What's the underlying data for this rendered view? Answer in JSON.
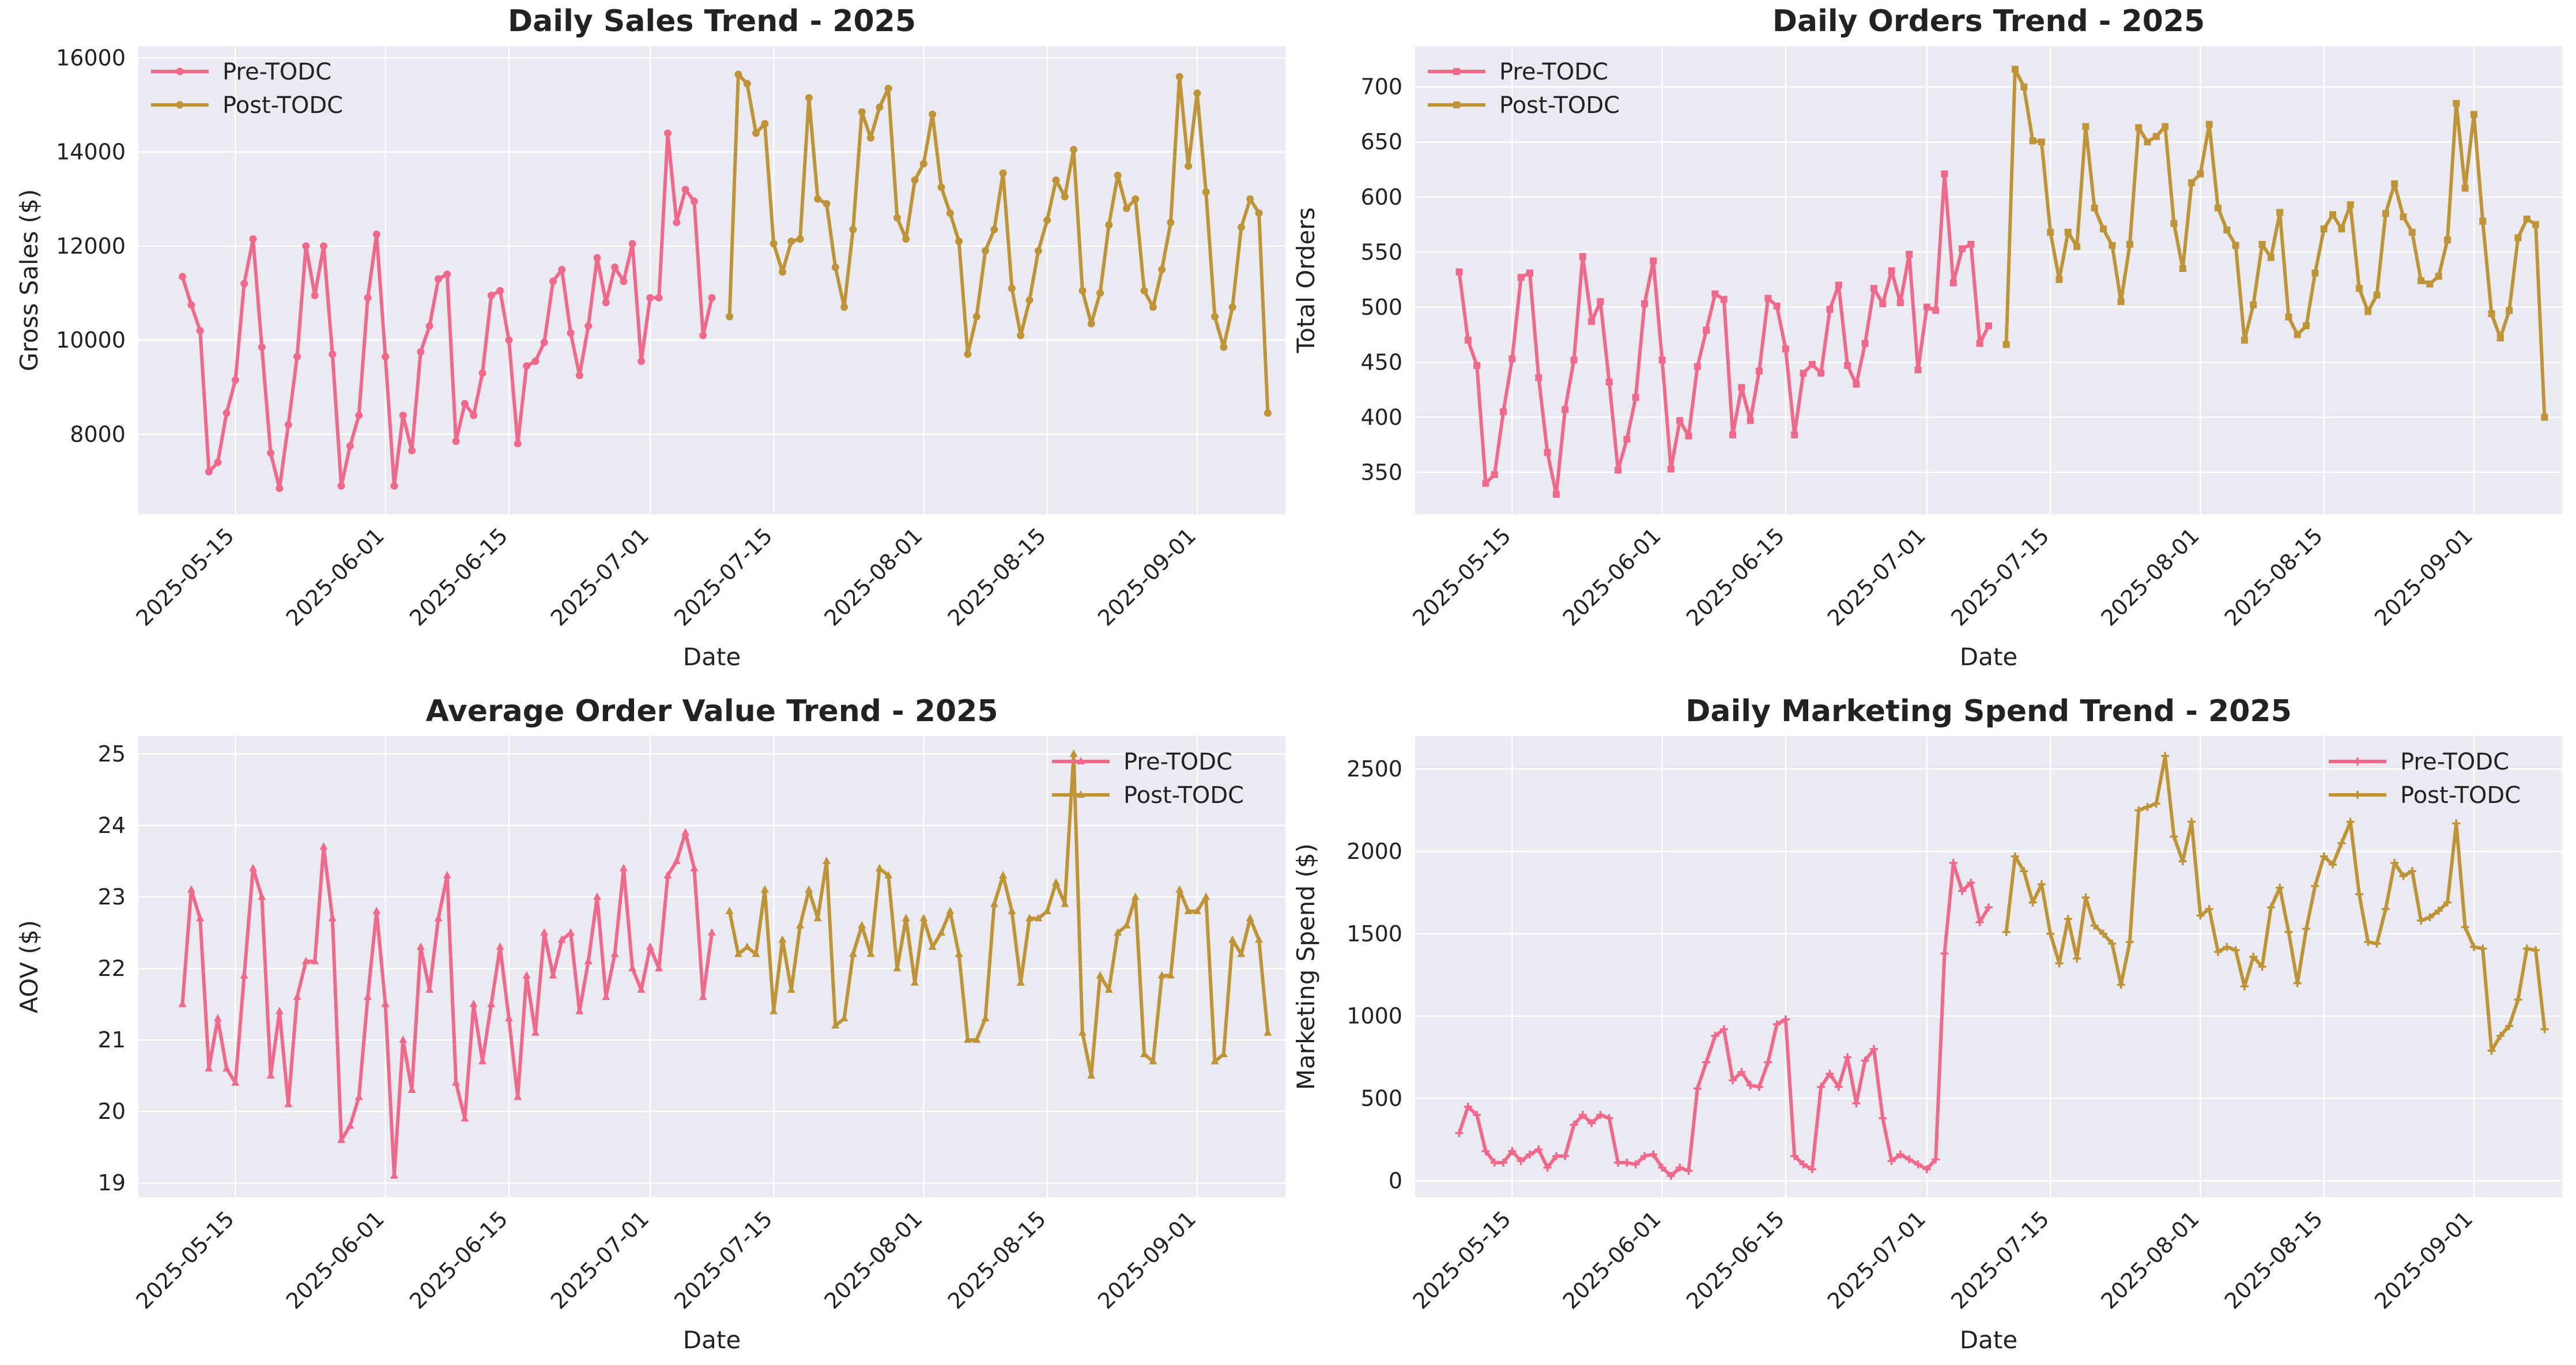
{
  "colors": {
    "pre": "#f0698a",
    "post": "#be9436",
    "plot_bg": "#eaeaf2",
    "grid": "#ffffff"
  },
  "chart_data": [
    {
      "type": "line",
      "title": "Daily Sales Trend - 2025",
      "xlabel": "Date",
      "ylabel": "Gross Sales ($)",
      "xlim": [
        "2025-05-04",
        "2025-09-11"
      ],
      "ylim": [
        6300,
        16250
      ],
      "yticks": [
        8000,
        10000,
        12000,
        14000,
        16000
      ],
      "xticks": [
        "2025-05-15",
        "2025-06-01",
        "2025-06-15",
        "2025-07-01",
        "2025-07-15",
        "2025-08-01",
        "2025-08-15",
        "2025-09-01"
      ],
      "grid": true,
      "legend": "upper-left",
      "marker": "circle",
      "series": [
        {
          "name": "Pre-TODC",
          "start": "2025-05-09",
          "values": [
            11350,
            10750,
            10200,
            7200,
            7400,
            8450,
            9150,
            11200,
            12150,
            9850,
            7600,
            6850,
            8200,
            9650,
            12000,
            10950,
            12000,
            9700,
            6900,
            7750,
            8400,
            10900,
            12250,
            9650,
            6900,
            8400,
            7650,
            9750,
            10300,
            11300,
            11400,
            7850,
            8650,
            8400,
            9300,
            10950,
            11050,
            10000,
            7800,
            9450,
            9550,
            9950,
            11250,
            11500,
            10150,
            9250,
            10300,
            11750,
            10800,
            11550,
            11250,
            12050,
            9550,
            10900,
            10900,
            14400,
            12500,
            13200,
            12950,
            10100,
            10900
          ]
        },
        {
          "name": "Post-TODC",
          "start": "2025-07-10",
          "values": [
            10500,
            15650,
            15450,
            14400,
            14600,
            12050,
            11450,
            12100,
            12150,
            15150,
            13000,
            12900,
            11550,
            10700,
            12350,
            14850,
            14300,
            14950,
            15350,
            12600,
            12150,
            13400,
            13750,
            14800,
            13250,
            12700,
            12100,
            9700,
            10500,
            11900,
            12350,
            13550,
            11100,
            10100,
            10850,
            11900,
            12550,
            13400,
            13050,
            14050,
            11050,
            10350,
            11000,
            12450,
            13500,
            12800,
            13000,
            11050,
            10700,
            11500,
            12500,
            15600,
            13700,
            15250,
            13150,
            10500,
            9850,
            10700,
            12400,
            13000,
            12700,
            8450
          ]
        }
      ]
    },
    {
      "type": "line",
      "title": "Daily Orders Trend - 2025",
      "xlabel": "Date",
      "ylabel": "Total Orders",
      "xlim": [
        "2025-05-04",
        "2025-09-11"
      ],
      "ylim": [
        312,
        737
      ],
      "yticks": [
        350,
        400,
        450,
        500,
        550,
        600,
        650,
        700
      ],
      "xticks": [
        "2025-05-15",
        "2025-06-01",
        "2025-06-15",
        "2025-07-01",
        "2025-07-15",
        "2025-08-01",
        "2025-08-15",
        "2025-09-01"
      ],
      "grid": true,
      "legend": "upper-left",
      "marker": "square",
      "series": [
        {
          "name": "Pre-TODC",
          "start": "2025-05-09",
          "values": [
            532,
            470,
            447,
            340,
            348,
            405,
            453,
            527,
            531,
            436,
            368,
            330,
            407,
            452,
            546,
            487,
            505,
            432,
            352,
            380,
            418,
            503,
            542,
            452,
            353,
            397,
            383,
            446,
            479,
            512,
            507,
            384,
            427,
            397,
            442,
            508,
            501,
            462,
            384,
            440,
            448,
            440,
            498,
            520,
            447,
            430,
            467,
            517,
            503,
            533,
            504,
            548,
            443,
            500,
            497,
            621,
            522,
            553,
            557,
            467,
            483
          ]
        },
        {
          "name": "Post-TODC",
          "start": "2025-07-10",
          "values": [
            466,
            716,
            700,
            651,
            650,
            568,
            525,
            568,
            555,
            664,
            590,
            571,
            556,
            505,
            557,
            663,
            650,
            655,
            664,
            576,
            535,
            613,
            621,
            666,
            590,
            570,
            556,
            470,
            502,
            557,
            545,
            586,
            491,
            475,
            483,
            531,
            571,
            584,
            571,
            593,
            517,
            496,
            511,
            585,
            612,
            582,
            568,
            524,
            521,
            528,
            561,
            685,
            608,
            675,
            578,
            494,
            472,
            497,
            563,
            580,
            575,
            400
          ]
        }
      ]
    },
    {
      "type": "line",
      "title": "Average Order Value Trend - 2025",
      "xlabel": "Date",
      "ylabel": "AOV ($)",
      "xlim": [
        "2025-05-04",
        "2025-09-11"
      ],
      "ylim": [
        18.8,
        25.25
      ],
      "yticks": [
        19,
        20,
        21,
        22,
        23,
        24,
        25
      ],
      "xticks": [
        "2025-05-15",
        "2025-06-01",
        "2025-06-15",
        "2025-07-01",
        "2025-07-15",
        "2025-08-01",
        "2025-08-15",
        "2025-09-01"
      ],
      "grid": true,
      "legend": "upper-right",
      "marker": "triangle",
      "series": [
        {
          "name": "Pre-TODC",
          "start": "2025-05-09",
          "values": [
            21.5,
            23.1,
            22.7,
            20.6,
            21.3,
            20.6,
            20.4,
            21.9,
            23.4,
            23.0,
            20.5,
            21.4,
            20.1,
            21.6,
            22.1,
            22.1,
            23.7,
            22.7,
            19.6,
            19.8,
            20.2,
            21.6,
            22.8,
            21.5,
            19.1,
            21.0,
            20.3,
            22.3,
            21.7,
            22.7,
            23.3,
            20.4,
            19.9,
            21.5,
            20.7,
            21.5,
            22.3,
            21.3,
            20.2,
            21.9,
            21.1,
            22.5,
            21.9,
            22.4,
            22.5,
            21.4,
            22.1,
            23.0,
            21.6,
            22.2,
            23.4,
            22.0,
            21.7,
            22.3,
            22.0,
            23.3,
            23.5,
            23.9,
            23.4,
            21.6,
            22.5
          ]
        },
        {
          "name": "Post-TODC",
          "start": "2025-07-10",
          "values": [
            22.8,
            22.2,
            22.3,
            22.2,
            23.1,
            21.4,
            22.4,
            21.7,
            22.6,
            23.1,
            22.7,
            23.5,
            21.2,
            21.3,
            22.2,
            22.6,
            22.2,
            23.4,
            23.3,
            22.0,
            22.7,
            21.8,
            22.7,
            22.3,
            22.5,
            22.8,
            22.2,
            21.0,
            21.0,
            21.3,
            22.9,
            23.3,
            22.8,
            21.8,
            22.7,
            22.7,
            22.8,
            23.2,
            22.9,
            25.0,
            21.1,
            20.5,
            21.9,
            21.7,
            22.5,
            22.6,
            23.0,
            20.8,
            20.7,
            21.9,
            21.9,
            23.1,
            22.8,
            22.8,
            23.0,
            20.7,
            20.8,
            22.4,
            22.2,
            22.7,
            22.4,
            21.1
          ]
        }
      ]
    },
    {
      "type": "line",
      "title": "Daily Marketing Spend Trend - 2025",
      "xlabel": "Date",
      "ylabel": "Marketing Spend ($)",
      "xlim": [
        "2025-05-04",
        "2025-09-11"
      ],
      "ylim": [
        -100,
        2700
      ],
      "yticks": [
        0,
        500,
        1000,
        1500,
        2000,
        2500
      ],
      "xticks": [
        "2025-05-15",
        "2025-06-01",
        "2025-06-15",
        "2025-07-01",
        "2025-07-15",
        "2025-08-01",
        "2025-08-15",
        "2025-09-01"
      ],
      "grid": true,
      "legend": "upper-right",
      "marker": "plus",
      "series": [
        {
          "name": "Pre-TODC",
          "start": "2025-05-09",
          "values": [
            290,
            450,
            400,
            180,
            110,
            110,
            180,
            120,
            160,
            190,
            80,
            150,
            150,
            340,
            400,
            350,
            400,
            380,
            110,
            110,
            100,
            150,
            160,
            80,
            30,
            80,
            60,
            560,
            720,
            880,
            920,
            610,
            660,
            580,
            570,
            720,
            950,
            980,
            150,
            100,
            70,
            570,
            650,
            570,
            750,
            470,
            730,
            800,
            380,
            120,
            160,
            130,
            100,
            70,
            130,
            1380,
            1930,
            1760,
            1810,
            1570,
            1660
          ]
        },
        {
          "name": "Post-TODC",
          "start": "2025-07-10",
          "values": [
            1510,
            1970,
            1880,
            1690,
            1800,
            1500,
            1320,
            1590,
            1350,
            1720,
            1550,
            1500,
            1440,
            1190,
            1450,
            2250,
            2270,
            2290,
            2580,
            2090,
            1940,
            2180,
            1610,
            1650,
            1390,
            1420,
            1400,
            1180,
            1360,
            1300,
            1660,
            1780,
            1510,
            1200,
            1530,
            1790,
            1970,
            1920,
            2050,
            2180,
            1740,
            1450,
            1440,
            1650,
            1930,
            1850,
            1880,
            1580,
            1600,
            1640,
            1690,
            2170,
            1540,
            1420,
            1410,
            790,
            880,
            940,
            1100,
            1410,
            1400,
            920
          ]
        }
      ]
    }
  ]
}
